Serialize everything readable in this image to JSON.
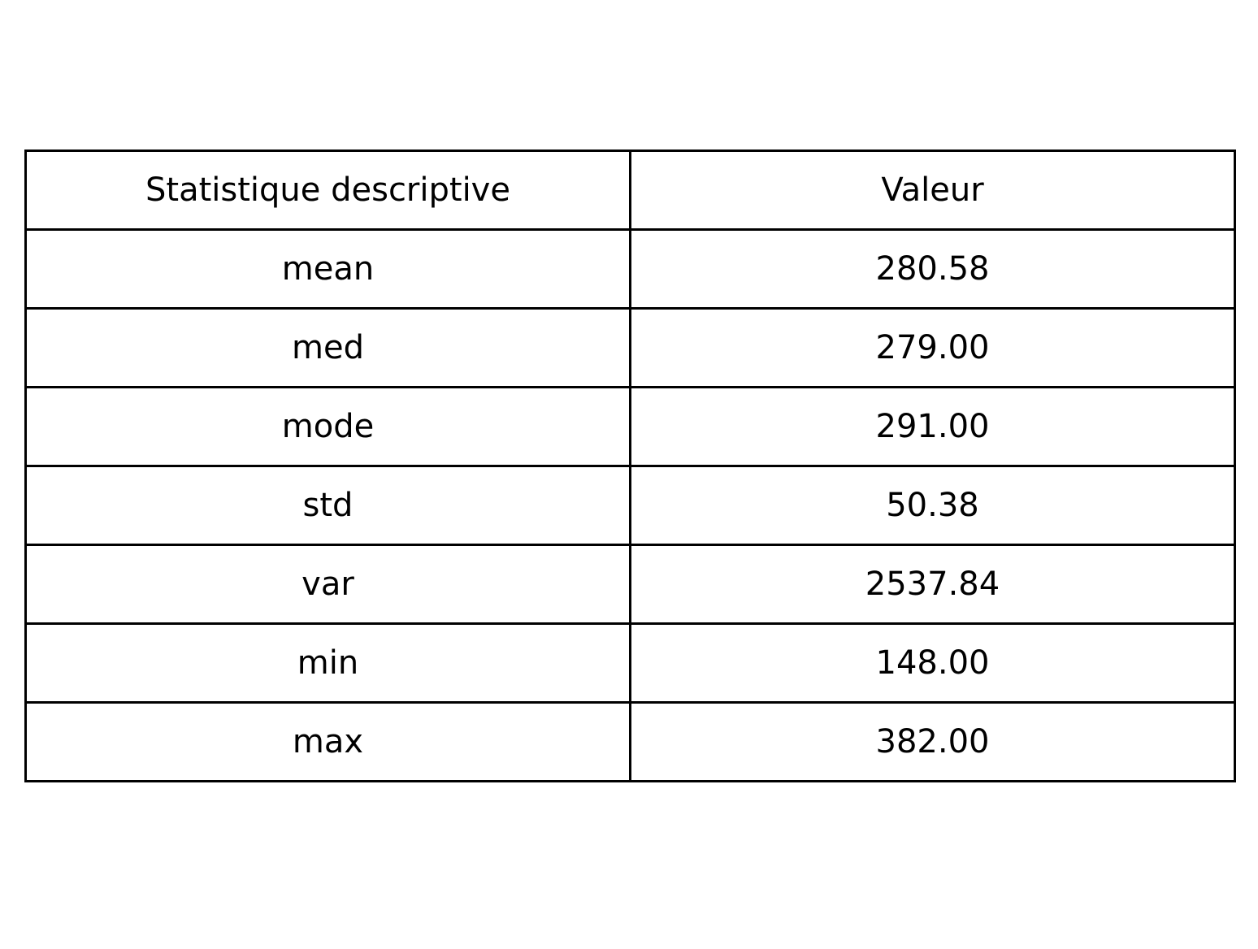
{
  "chart_data": {
    "type": "table",
    "columns": [
      "Statistique descriptive",
      "Valeur"
    ],
    "rows": [
      [
        "mean",
        "280.58"
      ],
      [
        "med",
        "279.00"
      ],
      [
        "mode",
        "291.00"
      ],
      [
        "std",
        "50.38"
      ],
      [
        "var",
        "2537.84"
      ],
      [
        "min",
        "148.00"
      ],
      [
        "max",
        "382.00"
      ]
    ]
  }
}
